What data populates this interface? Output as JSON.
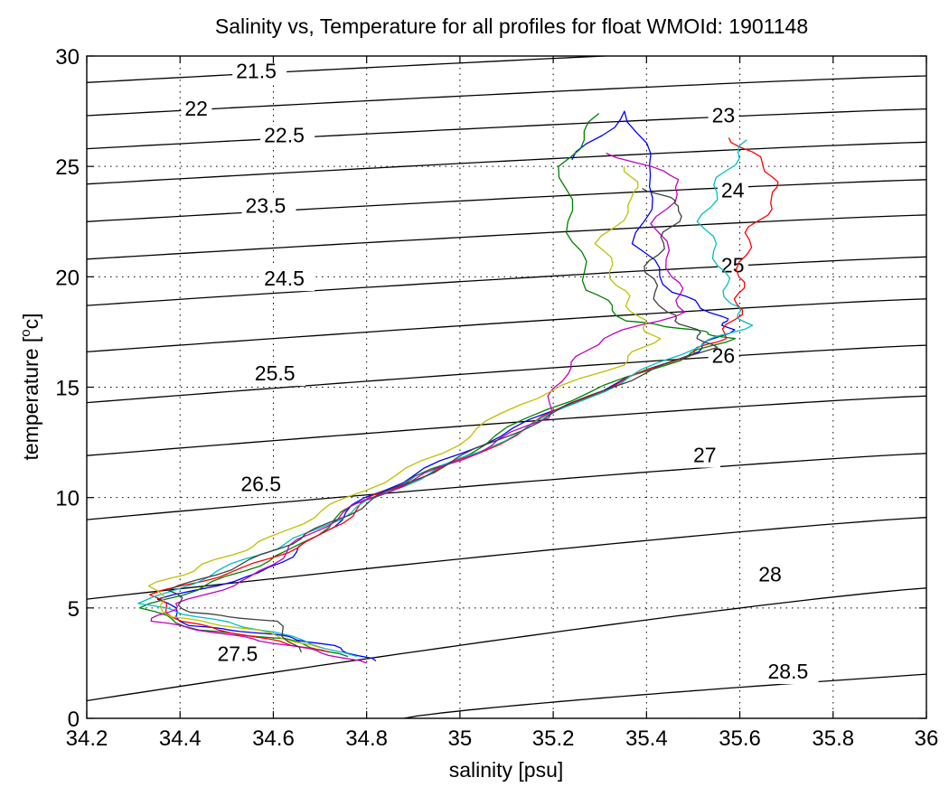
{
  "chart_data": {
    "type": "line",
    "title": "Salinity vs, Temperature for all profiles for float WMOId: 1901148",
    "xlabel": "salinity [psu]",
    "ylabel_main": "temperature [",
    "ylabel_sup": "o",
    "ylabel_end": "c]",
    "xlim": [
      34.2,
      36
    ],
    "ylim": [
      0,
      30
    ],
    "xticks": [
      34.2,
      34.4,
      34.6,
      34.8,
      35,
      35.2,
      35.4,
      35.6,
      35.8,
      36
    ],
    "xtick_labels": [
      "34.2",
      "34.4",
      "34.6",
      "34.8",
      "35",
      "35.2",
      "35.4",
      "35.6",
      "35.8",
      "36"
    ],
    "yticks": [
      0,
      5,
      10,
      15,
      20,
      25,
      30
    ],
    "ytick_labels": [
      "0",
      "5",
      "10",
      "15",
      "20",
      "25",
      "30"
    ],
    "grid": "dotted",
    "isopycnals": [
      {
        "label": "21.5",
        "t_left": 28.8,
        "t_right": 30.6,
        "label_s": 34.52,
        "label_t": 29.0
      },
      {
        "label": "22",
        "t_left": 27.3,
        "t_right": 29.1,
        "label_s": 34.41,
        "label_t": 27.3
      },
      {
        "label": "22.5",
        "t_left": 25.8,
        "t_right": 27.6,
        "label_s": 34.58,
        "label_t": 26.1
      },
      {
        "label": "23",
        "t_left": 24.2,
        "t_right": 26.1,
        "label_s": 35.54,
        "label_t": 27.0
      },
      {
        "label": "23.5",
        "t_left": 22.5,
        "t_right": 24.4,
        "label_s": 34.54,
        "label_t": 22.9
      },
      {
        "label": "24",
        "t_left": 20.8,
        "t_right": 22.8,
        "label_s": 35.56,
        "label_t": 23.6
      },
      {
        "label": "24.5",
        "t_left": 18.7,
        "t_right": 20.9,
        "label_s": 34.58,
        "label_t": 19.6
      },
      {
        "label": "25",
        "t_left": 16.6,
        "t_right": 19.0,
        "label_s": 35.56,
        "label_t": 20.2
      },
      {
        "label": "25.5",
        "t_left": 14.3,
        "t_right": 16.9,
        "label_s": 34.56,
        "label_t": 15.3
      },
      {
        "label": "26",
        "t_left": 11.9,
        "t_right": 14.6,
        "label_s": 35.54,
        "label_t": 16.1
      },
      {
        "label": "26.5",
        "t_left": 9.0,
        "t_right": 12.0,
        "label_s": 34.53,
        "label_t": 10.3
      },
      {
        "label": "27",
        "t_left": 5.4,
        "t_right": 9.1,
        "label_s": 35.5,
        "label_t": 11.6
      },
      {
        "label": "27.5",
        "t_left": 0.8,
        "t_right": 5.9,
        "label_s": 34.48,
        "label_t": 2.6
      },
      {
        "label": "28",
        "s_bottom": 34.88,
        "t_right": 2.0,
        "label_s": 35.64,
        "label_t": 6.2
      },
      {
        "label": "28.5",
        "s_bottom": 35.49,
        "t_right": -0.4,
        "label_s": 35.66,
        "label_t": 1.8
      }
    ],
    "series": [
      {
        "color": "#0000ff",
        "points": [
          [
            35.24,
            25.3
          ],
          [
            35.36,
            27.5
          ],
          [
            35.42,
            24.6
          ],
          [
            35.38,
            21.5
          ],
          [
            35.46,
            19.3
          ],
          [
            35.56,
            18.2
          ],
          [
            35.58,
            17.6
          ],
          [
            35.5,
            16.6
          ],
          [
            35.24,
            14.3
          ],
          [
            35.0,
            12.0
          ],
          [
            34.8,
            10.0
          ],
          [
            34.68,
            8.0
          ],
          [
            34.58,
            6.6
          ],
          [
            34.36,
            5.4
          ],
          [
            34.42,
            4.2
          ],
          [
            34.6,
            3.8
          ],
          [
            34.72,
            3.3
          ],
          [
            34.82,
            2.6
          ]
        ]
      },
      {
        "color": "#008000",
        "points": [
          [
            35.3,
            27.4
          ],
          [
            35.22,
            25.0
          ],
          [
            35.24,
            22.0
          ],
          [
            35.28,
            19.4
          ],
          [
            35.36,
            18.0
          ],
          [
            35.5,
            17.6
          ],
          [
            35.58,
            17.2
          ],
          [
            35.46,
            16.2
          ],
          [
            35.18,
            14.0
          ],
          [
            34.98,
            11.6
          ],
          [
            34.78,
            9.7
          ],
          [
            34.64,
            7.6
          ],
          [
            34.48,
            6.2
          ],
          [
            34.32,
            5.0
          ],
          [
            34.44,
            4.0
          ],
          [
            34.62,
            3.6
          ],
          [
            34.76,
            2.8
          ]
        ]
      },
      {
        "color": "#ff0000",
        "points": [
          [
            35.58,
            26.3
          ],
          [
            35.66,
            25.0
          ],
          [
            35.68,
            23.6
          ],
          [
            35.62,
            22.0
          ],
          [
            35.6,
            20.0
          ],
          [
            35.6,
            18.5
          ],
          [
            35.56,
            17.2
          ],
          [
            35.48,
            16.4
          ],
          [
            35.26,
            14.5
          ],
          [
            35.04,
            12.0
          ],
          [
            34.82,
            10.1
          ],
          [
            34.7,
            8.2
          ],
          [
            34.54,
            6.8
          ],
          [
            34.34,
            5.6
          ],
          [
            34.4,
            4.4
          ],
          [
            34.58,
            3.6
          ],
          [
            34.72,
            3.0
          ]
        ]
      },
      {
        "color": "#00bfbf",
        "points": [
          [
            35.62,
            26.2
          ],
          [
            35.56,
            24.5
          ],
          [
            35.52,
            22.5
          ],
          [
            35.56,
            20.5
          ],
          [
            35.58,
            18.8
          ],
          [
            35.62,
            17.8
          ],
          [
            35.5,
            16.8
          ],
          [
            35.3,
            14.8
          ],
          [
            35.04,
            12.1
          ],
          [
            34.84,
            10.2
          ],
          [
            34.68,
            8.4
          ],
          [
            34.52,
            7.0
          ],
          [
            34.32,
            5.2
          ],
          [
            34.44,
            4.6
          ],
          [
            34.6,
            3.9
          ],
          [
            34.78,
            2.8
          ]
        ]
      },
      {
        "color": "#bf00bf",
        "points": [
          [
            35.32,
            25.6
          ],
          [
            35.48,
            24.4
          ],
          [
            35.42,
            22.4
          ],
          [
            35.46,
            20.0
          ],
          [
            35.48,
            18.4
          ],
          [
            35.3,
            17.2
          ],
          [
            35.22,
            15.6
          ],
          [
            35.18,
            13.6
          ],
          [
            35.0,
            11.7
          ],
          [
            34.8,
            9.9
          ],
          [
            34.66,
            8.1
          ],
          [
            34.56,
            6.4
          ],
          [
            34.4,
            5.2
          ],
          [
            34.34,
            4.4
          ],
          [
            34.5,
            3.8
          ],
          [
            34.66,
            3.2
          ],
          [
            34.8,
            2.5
          ]
        ]
      },
      {
        "color": "#bfbf00",
        "points": [
          [
            35.36,
            25.0
          ],
          [
            35.38,
            23.6
          ],
          [
            35.3,
            21.5
          ],
          [
            35.34,
            19.6
          ],
          [
            35.38,
            18.2
          ],
          [
            35.42,
            17.2
          ],
          [
            35.34,
            16.0
          ],
          [
            35.12,
            14.2
          ],
          [
            34.96,
            12.0
          ],
          [
            34.76,
            10.0
          ],
          [
            34.6,
            8.2
          ],
          [
            34.46,
            7.0
          ],
          [
            34.34,
            6.0
          ],
          [
            34.38,
            4.6
          ],
          [
            34.56,
            4.0
          ],
          [
            34.7,
            3.2
          ]
        ]
      },
      {
        "color": "#404040",
        "points": [
          [
            35.4,
            24.0
          ],
          [
            35.48,
            23.2
          ],
          [
            35.44,
            21.8
          ],
          [
            35.4,
            20.2
          ],
          [
            35.44,
            18.4
          ],
          [
            35.5,
            17.6
          ],
          [
            35.54,
            16.8
          ],
          [
            35.32,
            15.0
          ],
          [
            35.08,
            12.6
          ],
          [
            34.86,
            10.4
          ],
          [
            34.7,
            8.6
          ],
          [
            34.56,
            7.2
          ],
          [
            34.38,
            5.8
          ],
          [
            34.42,
            4.8
          ],
          [
            34.6,
            4.4
          ],
          [
            34.66,
            3.0
          ]
        ]
      }
    ]
  }
}
